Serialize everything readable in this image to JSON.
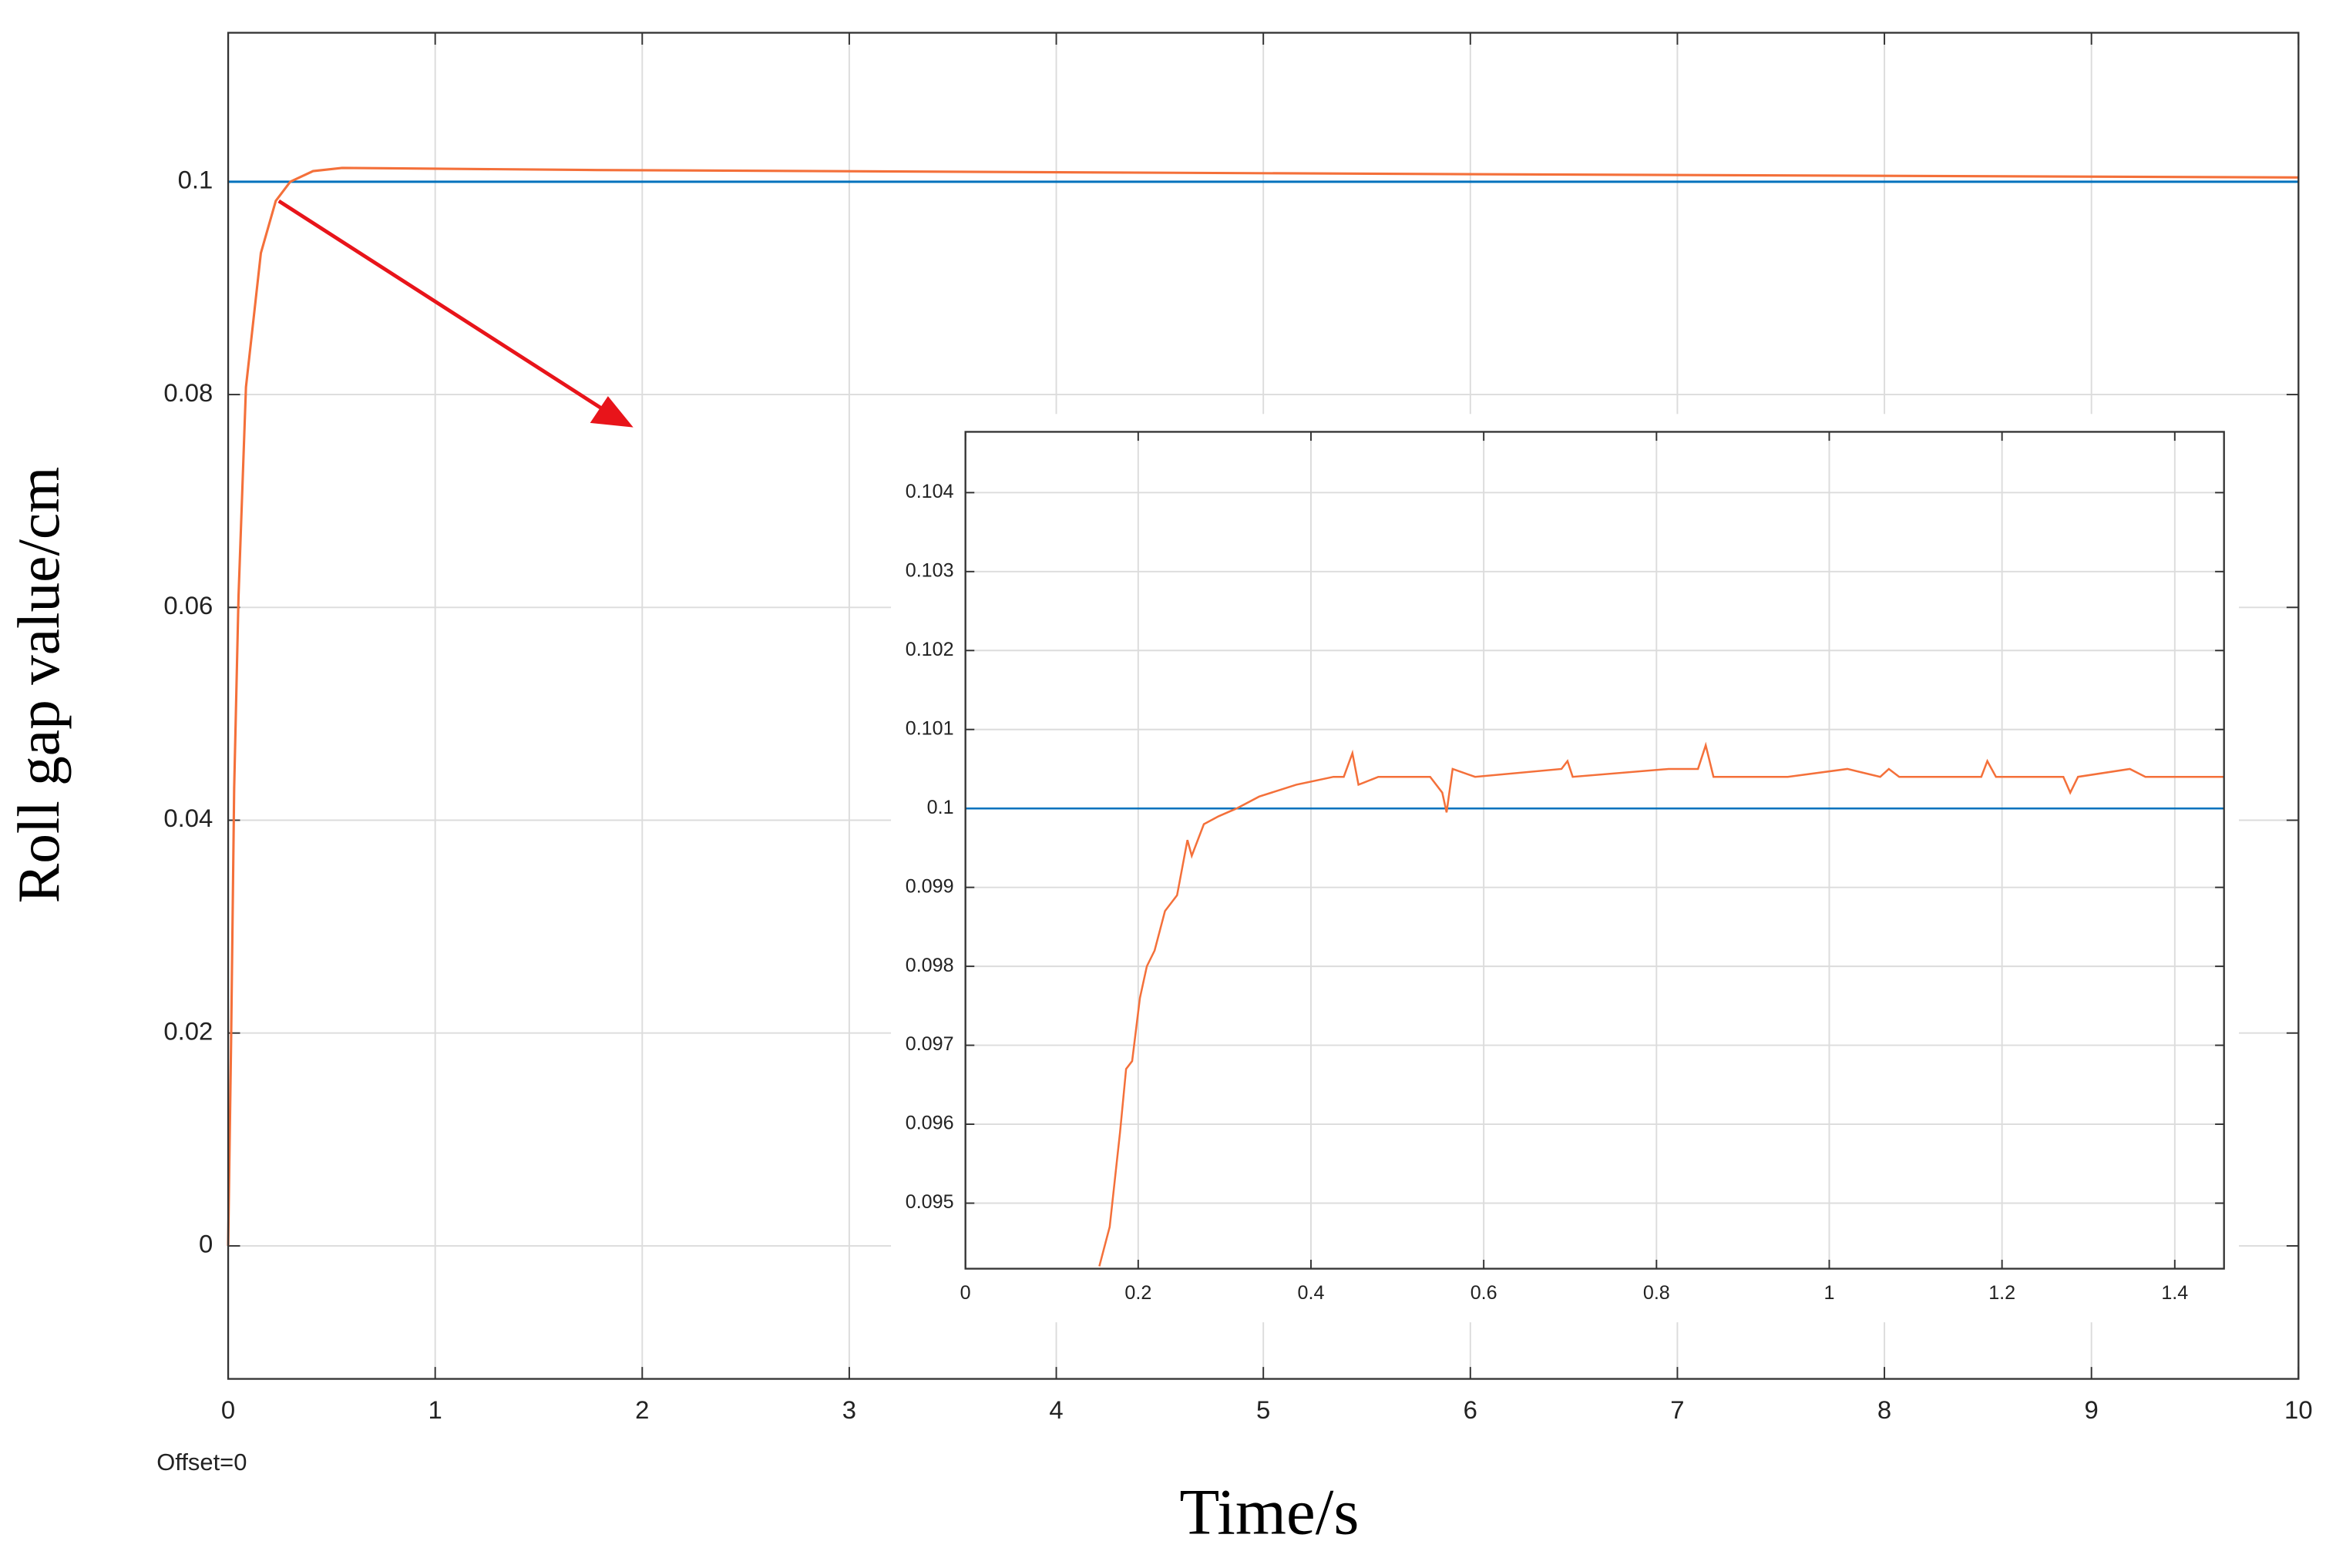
{
  "chart_data": [
    {
      "type": "line",
      "xlabel": "Time/s",
      "ylabel": "Roll gap value/cm",
      "annotation": "Offset=0",
      "xlim": [
        0,
        10
      ],
      "ylim": [
        -0.0125,
        0.114
      ],
      "xticks": [
        0,
        1,
        2,
        3,
        4,
        5,
        6,
        7,
        8,
        9,
        10
      ],
      "yticks": [
        0,
        0.02,
        0.04,
        0.06,
        0.08,
        0.1
      ],
      "grid": true,
      "series": [
        {
          "color": "#0072bd",
          "x": [
            0,
            10
          ],
          "values": [
            0.1,
            0.1
          ]
        },
        {
          "color": "#f4703a",
          "x": [
            0,
            0.014,
            0.029,
            0.05,
            0.086,
            0.158,
            0.23,
            0.3,
            0.41,
            0.55,
            1.78,
            6.1,
            10
          ],
          "values": [
            0,
            0.019,
            0.043,
            0.061,
            0.0807,
            0.0933,
            0.0982,
            0.1,
            0.101,
            0.1013,
            0.1011,
            0.1007,
            0.1004
          ]
        }
      ]
    },
    {
      "type": "line",
      "xlim": [
        0,
        1.457
      ],
      "ylim": [
        0.09417,
        0.10477
      ],
      "xticks": [
        0,
        0.2,
        0.4,
        0.6,
        0.8,
        1,
        1.2,
        1.4
      ],
      "yticks": [
        0.095,
        0.096,
        0.097,
        0.098,
        0.099,
        0.1,
        0.101,
        0.102,
        0.103,
        0.104
      ],
      "grid": true,
      "series": [
        {
          "color": "#0072bd",
          "x": [
            0,
            1.457
          ],
          "values": [
            0.1,
            0.1
          ]
        },
        {
          "color": "#f4703a",
          "x": [
            0.155,
            0.167,
            0.179,
            0.186,
            0.193,
            0.202,
            0.21,
            0.219,
            0.231,
            0.245,
            0.257,
            0.262,
            0.276,
            0.293,
            0.314,
            0.34,
            0.383,
            0.426,
            0.438,
            0.448,
            0.455,
            0.478,
            0.538,
            0.552,
            0.557,
            0.564,
            0.59,
            0.69,
            0.697,
            0.703,
            0.814,
            0.848,
            0.857,
            0.866,
            0.952,
            1.021,
            1.059,
            1.069,
            1.081,
            1.176,
            1.183,
            1.193,
            1.271,
            1.279,
            1.288,
            1.348,
            1.366,
            1.457
          ],
          "values": [
            0.0942,
            0.0947,
            0.0959,
            0.0967,
            0.0968,
            0.0976,
            0.098,
            0.0982,
            0.0987,
            0.0989,
            0.0996,
            0.0994,
            0.0998,
            0.0999,
            0.1,
            0.10015,
            0.1003,
            0.1004,
            0.1004,
            0.1007,
            0.1003,
            0.1004,
            0.1004,
            0.1002,
            0.09995,
            0.1005,
            0.1004,
            0.1005,
            0.1006,
            0.1004,
            0.1005,
            0.1005,
            0.1008,
            0.1004,
            0.1004,
            0.1005,
            0.1004,
            0.1005,
            0.1004,
            0.1004,
            0.1006,
            0.1004,
            0.1004,
            0.1002,
            0.1004,
            0.1005,
            0.1004,
            0.1004
          ]
        }
      ]
    }
  ]
}
